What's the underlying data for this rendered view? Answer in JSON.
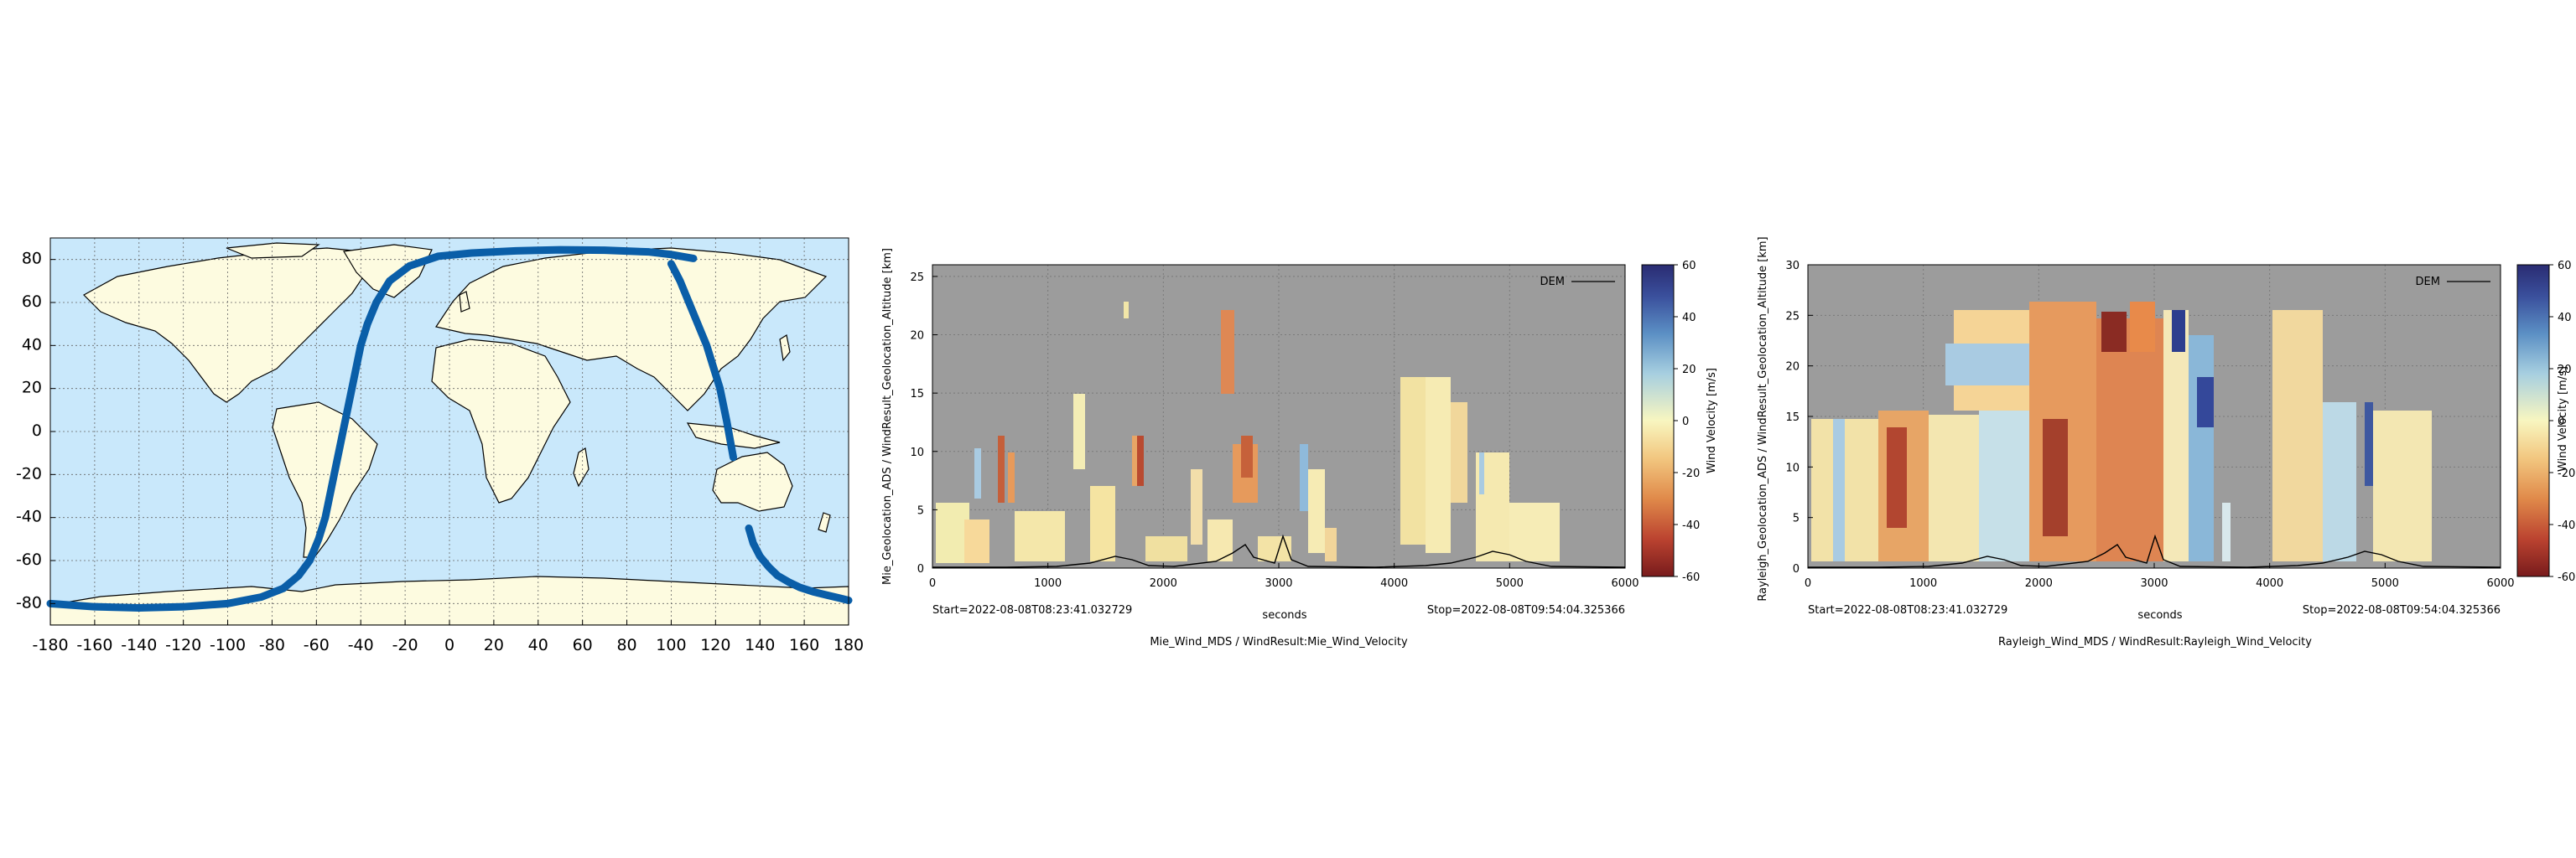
{
  "chart_data": [
    {
      "type": "scatter",
      "title": "",
      "xlabel": "",
      "ylabel": "",
      "xlim": [
        -180,
        180
      ],
      "ylim": [
        -90,
        90
      ],
      "xticks": [
        "-180",
        "-160",
        "-140",
        "-120",
        "-100",
        "-80",
        "-60",
        "-40",
        "-20",
        "0",
        "20",
        "40",
        "60",
        "80",
        "100",
        "120",
        "140",
        "160",
        "180"
      ],
      "yticks": [
        "80",
        "60",
        "40",
        "20",
        "0",
        "-20",
        "-40",
        "-60",
        "-80"
      ],
      "grid": true,
      "colors": {
        "ocean": "#c9e8fb",
        "land": "#fdfbe0",
        "track": "#0a5ea8"
      },
      "series": [
        {
          "x": [
            -180,
            -160,
            -140,
            -120,
            -100,
            -85,
            -75,
            -68,
            -63,
            -59,
            -56,
            -54,
            -52,
            -50,
            -48,
            -46,
            -44,
            -42,
            -40,
            -37,
            -33,
            -27,
            -18,
            -5,
            10,
            30,
            50,
            70,
            90,
            100,
            110
          ],
          "y": [
            -80,
            -81.5,
            -82,
            -81.5,
            -80,
            -77,
            -73,
            -67,
            -60,
            -50,
            -40,
            -30,
            -20,
            -10,
            0,
            10,
            20,
            30,
            40,
            50,
            60,
            70,
            77,
            81.5,
            83,
            84,
            84.5,
            84.3,
            83.5,
            82.3,
            80.5
          ]
        },
        {
          "x": [
            100,
            104,
            108,
            112,
            116,
            119,
            122,
            125,
            128
          ],
          "y": [
            78,
            70,
            60,
            50,
            40,
            30,
            20,
            5,
            -12
          ]
        },
        {
          "x": [
            135,
            137,
            140,
            144,
            148,
            153,
            158,
            164,
            170,
            176,
            180
          ],
          "y": [
            -45,
            -52,
            -58,
            -63,
            -67,
            -70,
            -72.5,
            -74.5,
            -76,
            -77.5,
            -78.5
          ]
        }
      ]
    },
    {
      "type": "heatmap",
      "title": "",
      "xlabel": "seconds",
      "ylabel": "Mie_Geolocation_ADS / WindResult_Geolocation_Altitude [km]",
      "caption": "Mie_Wind_MDS / WindResult:Mie_Wind_Velocity",
      "start_label": "Start=2022-08-08T08:23:41.032729",
      "stop_label": "Stop=2022-08-08T09:54:04.325366",
      "xlim": [
        0,
        6000
      ],
      "ylim": [
        0,
        26
      ],
      "xticks": [
        "0",
        "1000",
        "2000",
        "3000",
        "4000",
        "5000",
        "6000"
      ],
      "yticks": [
        "0",
        "5",
        "10",
        "15",
        "20",
        "25"
      ],
      "legend": "DEM",
      "legend_position": "top-right",
      "colorbar": {
        "label": "Wind Velocity [m/s]",
        "ticks": [
          "60",
          "40",
          "20",
          "0",
          "-20",
          "-40",
          "-60"
        ],
        "min": -60,
        "max": 60
      },
      "background": "#9c9c9c",
      "grid": true
    },
    {
      "type": "heatmap",
      "title": "",
      "xlabel": "seconds",
      "ylabel": "Rayleigh_Geolocation_ADS / WindResult_Geolocation_Altitude [km]",
      "caption": "Rayleigh_Wind_MDS / WindResult:Rayleigh_Wind_Velocity",
      "start_label": "Start=2022-08-08T08:23:41.032729",
      "stop_label": "Stop=2022-08-08T09:54:04.325366",
      "xlim": [
        0,
        6000
      ],
      "ylim": [
        0,
        30
      ],
      "xticks": [
        "0",
        "1000",
        "2000",
        "3000",
        "4000",
        "5000",
        "6000"
      ],
      "yticks": [
        "0",
        "5",
        "10",
        "15",
        "20",
        "25",
        "30"
      ],
      "legend": "DEM",
      "legend_position": "top-right",
      "colorbar": {
        "label": "Wind Velocity [m/s]",
        "ticks": [
          "60",
          "40",
          "20",
          "0",
          "-20",
          "-40",
          "-60"
        ],
        "min": -60,
        "max": 60
      },
      "background": "#9c9c9c",
      "grid": true
    }
  ]
}
